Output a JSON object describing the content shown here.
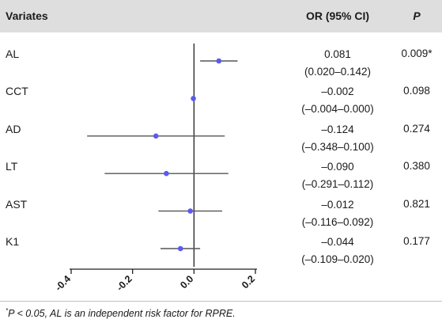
{
  "header": {
    "variates": "Variates",
    "or_ci": "OR (95% CI)",
    "p": "P"
  },
  "rows": [
    {
      "label": "AL",
      "or": "0.081",
      "ci": "(0.020–0.142)",
      "p": "0.009*"
    },
    {
      "label": "CCT",
      "or": "–0.002",
      "ci": "(–0.004–0.000)",
      "p": "0.098"
    },
    {
      "label": "AD",
      "or": "–0.124",
      "ci": "(–0.348–0.100)",
      "p": "0.274"
    },
    {
      "label": "LT",
      "or": "–0.090",
      "ci": "(–0.291–0.112)",
      "p": "0.380"
    },
    {
      "label": "AST",
      "or": "–0.012",
      "ci": "(–0.116–0.092)",
      "p": "0.821"
    },
    {
      "label": "K1",
      "or": "–0.044",
      "ci": "(–0.109–0.020)",
      "p": "0.177"
    }
  ],
  "footnote": {
    "star": "*",
    "text": "P < 0.05, AL is an independent risk factor for RPRE."
  },
  "chart_data": {
    "type": "scatter",
    "subtype": "forest-plot",
    "categories": [
      "AL",
      "CCT",
      "AD",
      "LT",
      "AST",
      "K1"
    ],
    "estimates": [
      0.081,
      -0.002,
      -0.124,
      -0.09,
      -0.012,
      -0.044
    ],
    "ci_lower": [
      0.02,
      -0.004,
      -0.348,
      -0.291,
      -0.116,
      -0.109
    ],
    "ci_upper": [
      0.142,
      0.0,
      0.1,
      0.112,
      0.092,
      0.02
    ],
    "xlim": [
      -0.4,
      0.2
    ],
    "xticks": [
      -0.4,
      -0.2,
      0.0,
      0.2
    ],
    "xtick_labels": [
      "-0.4",
      "-0.2",
      "0.0",
      "0.2"
    ],
    "reference_line": 0,
    "point_color": "#5a5af0",
    "line_color": "#555555",
    "title": "",
    "xlabel": "",
    "ylabel": ""
  }
}
